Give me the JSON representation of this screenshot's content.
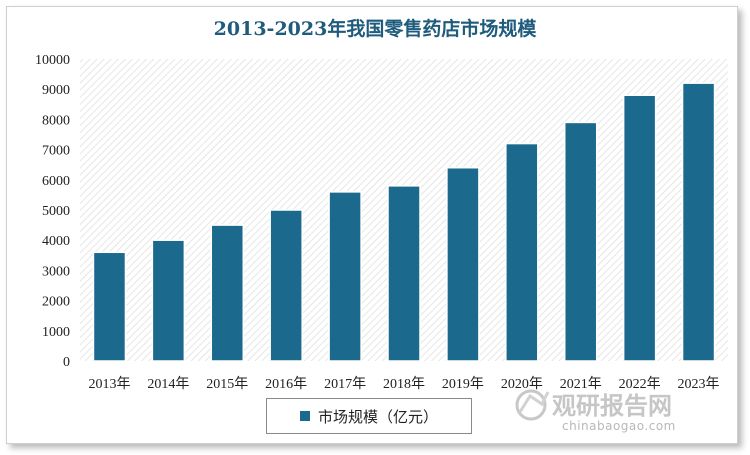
{
  "chart_data": {
    "type": "bar",
    "title": "2013-2023年我国零售药店市场规模",
    "categories": [
      "2013年",
      "2014年",
      "2015年",
      "2016年",
      "2017年",
      "2018年",
      "2019年",
      "2020年",
      "2021年",
      "2022年",
      "2023年"
    ],
    "series": [
      {
        "name": "市场规模（亿元）",
        "values": [
          3600,
          4000,
          4500,
          5000,
          5600,
          5800,
          6400,
          7200,
          7900,
          8800,
          9200
        ]
      }
    ],
    "ylim": [
      0,
      10000
    ],
    "yticks": [
      "0",
      "1000",
      "2000",
      "3000",
      "4000",
      "5000",
      "6000",
      "7000",
      "8000",
      "9000",
      "10000"
    ],
    "grid": false,
    "legend_position": "bottom-center",
    "colors": {
      "bar": "#1b6a8e",
      "title": "#1f5b7c"
    }
  },
  "watermark": {
    "brand": "观研报告网",
    "url": "chinabaogao.com"
  }
}
